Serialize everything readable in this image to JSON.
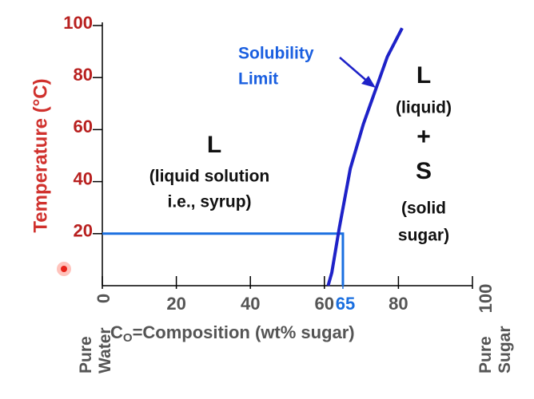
{
  "chart_data": {
    "type": "line",
    "ylabel": "Temperature (°C)",
    "xlabel": {
      "main": "C",
      "sub": "O",
      "rest": "=Composition (wt% sugar)"
    },
    "xlim": [
      0,
      100
    ],
    "ylim": [
      0,
      100
    ],
    "xticks": [
      0,
      20,
      40,
      60,
      65,
      80,
      100
    ],
    "yticks": [
      20,
      40,
      60,
      80,
      100
    ],
    "x_end_labels": [
      "Pure Water",
      "Pure Sugar"
    ],
    "curve": {
      "x": [
        61,
        62,
        64,
        67,
        70.5,
        74,
        77,
        81
      ],
      "y": [
        0,
        5,
        22,
        45,
        62,
        76,
        88,
        99
      ],
      "color": "#1e22c8"
    },
    "guide": {
      "x": 65,
      "y": 20,
      "color": "#1a6fe0"
    },
    "curve_label": [
      "Solubility",
      "Limit"
    ],
    "left_region": [
      "L",
      "(liquid solution",
      "i.e., syrup)"
    ],
    "right_region": [
      "L",
      "(liquid)",
      "+",
      "S",
      "(solid",
      "sugar)"
    ]
  }
}
